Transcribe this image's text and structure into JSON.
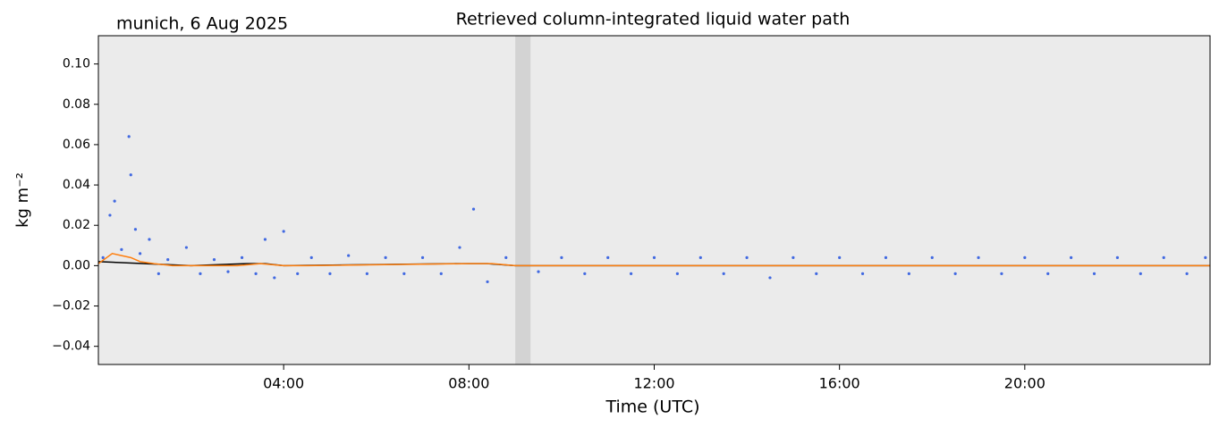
{
  "chart_data": {
    "type": "scatter",
    "title": "Retrieved column-integrated liquid water path",
    "subtitle": "munich, 6 Aug 2025",
    "x_label": "Time (UTC)",
    "y_label": "kg m⁻²",
    "xlim": [
      0,
      24
    ],
    "xticks": [
      {
        "value": 4,
        "label": "04:00"
      },
      {
        "value": 8,
        "label": "08:00"
      },
      {
        "value": 12,
        "label": "12:00"
      },
      {
        "value": 16,
        "label": "16:00"
      },
      {
        "value": 20,
        "label": "20:00"
      }
    ],
    "ylim": [
      -0.049,
      0.114
    ],
    "yticks": [
      {
        "value": -0.04,
        "label": "−0.04"
      },
      {
        "value": -0.02,
        "label": "−0.02"
      },
      {
        "value": 0,
        "label": "0.00"
      },
      {
        "value": 0.02,
        "label": "0.02"
      },
      {
        "value": 0.04,
        "label": "0.04"
      },
      {
        "value": 0.06,
        "label": "0.06"
      },
      {
        "value": 0.08,
        "label": "0.08"
      },
      {
        "value": 0.1,
        "label": "0.10"
      }
    ],
    "shaded": [
      9.0,
      9.33
    ],
    "shaded_color": "#d3d3d3",
    "background": "#ebebeb",
    "series": [
      {
        "type": "scatter",
        "color": "#4169e1",
        "x": [
          0.1,
          0.25,
          0.35,
          0.5,
          0.66,
          0.7,
          0.8,
          0.9,
          1.1,
          1.3,
          1.5,
          1.9,
          2.2,
          2.5,
          2.8,
          3.1,
          3.4,
          3.6,
          3.8,
          4.0,
          4.3,
          4.6,
          5.0,
          5.4,
          5.8,
          6.2,
          6.6,
          7.0,
          7.4,
          7.8,
          8.1,
          8.4,
          8.8,
          9.5,
          10,
          10.5,
          11,
          11.5,
          12,
          12.5,
          13,
          13.5,
          14,
          14.5,
          15,
          15.5,
          16,
          16.5,
          17,
          17.5,
          18,
          18.5,
          19,
          19.5,
          20,
          20.5,
          21,
          21.5,
          22,
          22.5,
          23,
          23.5,
          23.9
        ],
        "values": [
          0.004,
          0.025,
          0.032,
          0.008,
          0.064,
          0.045,
          0.018,
          0.006,
          0.013,
          -0.004,
          0.003,
          0.009,
          -0.004,
          0.003,
          -0.003,
          0.004,
          -0.004,
          0.013,
          -0.006,
          0.017,
          -0.004,
          0.004,
          -0.004,
          0.005,
          -0.004,
          0.004,
          -0.004,
          0.004,
          -0.004,
          0.009,
          0.028,
          -0.008,
          0.004,
          -0.003,
          0.004,
          -0.004,
          0.004,
          -0.004,
          0.004,
          -0.004,
          0.004,
          -0.004,
          0.004,
          -0.006,
          0.004,
          -0.004,
          0.004,
          -0.004,
          0.004,
          -0.004,
          0.004,
          -0.004,
          0.004,
          -0.004,
          0.004,
          -0.004,
          0.004,
          -0.004,
          0.004,
          -0.004,
          0.004,
          -0.004,
          0.004
        ]
      },
      {
        "type": "line",
        "color": "#000000",
        "x": [
          0,
          1,
          2,
          3.2,
          3.6,
          4,
          7.8,
          8.4,
          9,
          24
        ],
        "values": [
          0.002,
          0.001,
          0,
          0.001,
          0.001,
          0,
          0.001,
          0.001,
          0,
          0
        ]
      },
      {
        "type": "line",
        "color": "#ff7f0e",
        "x": [
          0,
          0.3,
          0.5,
          0.7,
          0.9,
          1.2,
          1.6,
          2,
          3,
          3.5,
          4,
          4.5,
          8,
          8.5,
          9,
          24
        ],
        "values": [
          0.001,
          0.006,
          0.005,
          0.004,
          0.002,
          0.001,
          0,
          0,
          0,
          0.001,
          0,
          0,
          0.001,
          0.001,
          0,
          0
        ]
      }
    ]
  }
}
